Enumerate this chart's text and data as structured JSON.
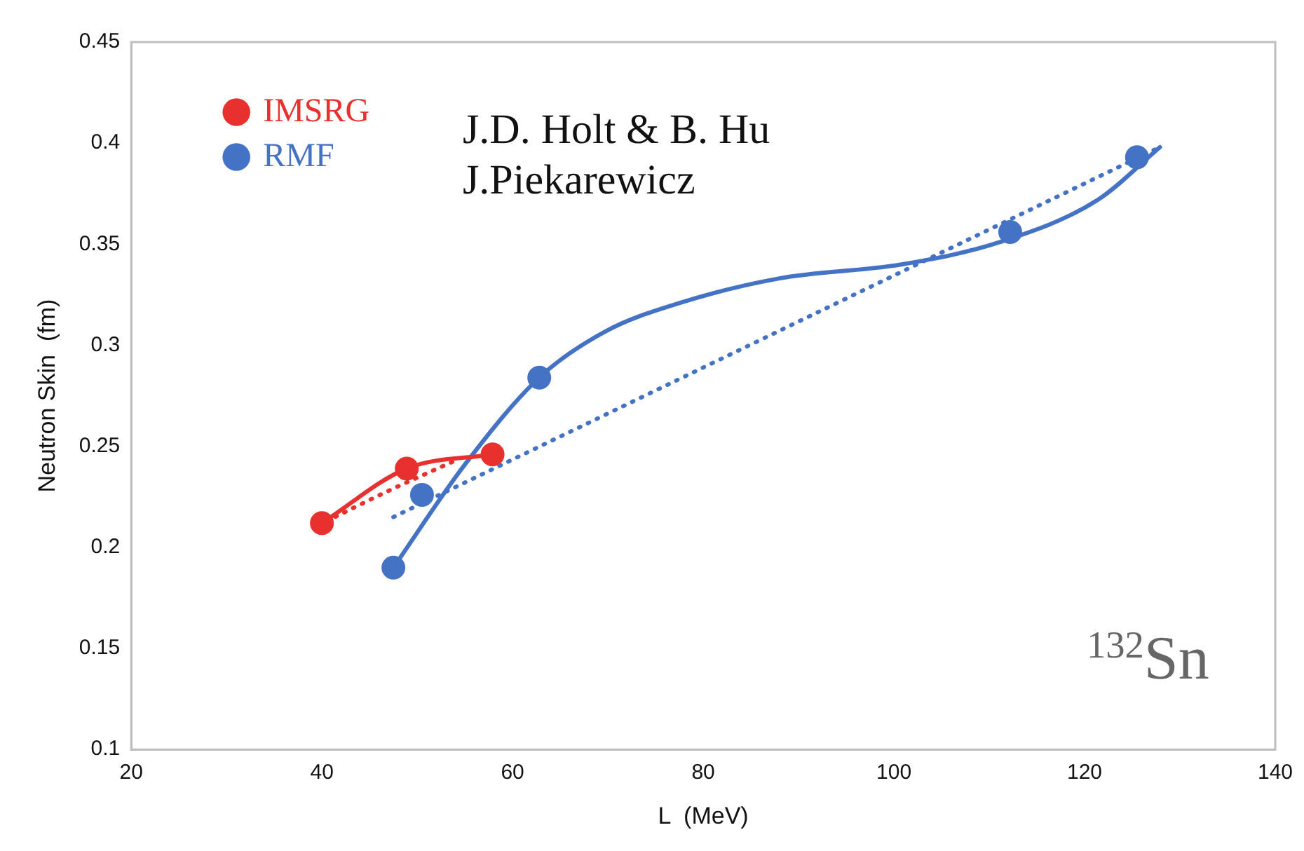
{
  "chart_data": {
    "type": "line",
    "xlabel": "L  (MeV)",
    "ylabel": "Neutron Skin  (fm)",
    "xlim": [
      20,
      140
    ],
    "xticks": [
      20,
      40,
      60,
      80,
      100,
      120,
      140
    ],
    "ylim": [
      0.1,
      0.45
    ],
    "yticks": [
      0.1,
      0.15,
      0.2,
      0.25,
      0.3,
      0.35,
      0.4,
      0.45
    ],
    "grid": false,
    "legend": "top left",
    "annotations": [
      "J.D. Holt & B. Hu",
      "J.Piekarewicz",
      "$^{132}$Sn"
    ],
    "series": [
      {
        "name": "IMSRG",
        "color": "#e8302e",
        "marker": "circle",
        "line_style": "solid",
        "x": [
          40,
          48.9,
          57.9
        ],
        "values": [
          0.212,
          0.239,
          0.246
        ]
      },
      {
        "color": "#e8302e",
        "marker": "none",
        "line_style": "dotted",
        "x": [
          40.5,
          47,
          54
        ],
        "values": [
          0.213,
          0.228,
          0.243
        ]
      },
      {
        "name": "RMF",
        "type": "scatter",
        "color": "#4472c4",
        "marker": "circle",
        "x": [
          47.5,
          50.5,
          62.8,
          112.2,
          125.5
        ],
        "values": [
          0.19,
          0.226,
          0.284,
          0.356,
          0.393
        ]
      },
      {
        "color": "#4472c4",
        "marker": "none",
        "line_style": "solid",
        "x": [
          47.5,
          55,
          62.8,
          69.8,
          77.6,
          87.9,
          100.8,
          111.1,
          121.4,
          127.9
        ],
        "values": [
          0.19,
          0.241,
          0.284,
          0.307,
          0.321,
          0.333,
          0.34,
          0.351,
          0.372,
          0.398
        ]
      },
      {
        "color": "#4472c4",
        "marker": "none",
        "line_style": "dotted",
        "x": [
          47.5,
          127.9
        ],
        "values": [
          0.215,
          0.398
        ]
      }
    ]
  }
}
